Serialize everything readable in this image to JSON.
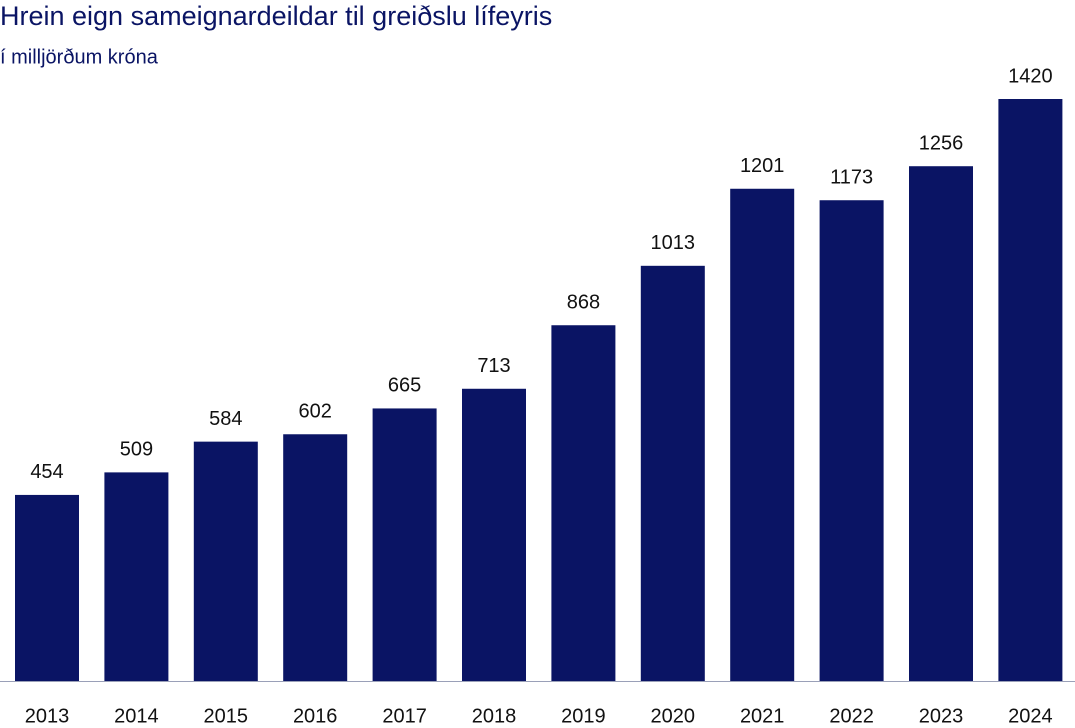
{
  "chart_data": {
    "type": "bar",
    "title": "Hrein eign sameignardeildar til greiðslu lífeyris",
    "subtitle": "í milljörðum króna",
    "categories": [
      "2013",
      "2014",
      "2015",
      "2016",
      "2017",
      "2018",
      "2019",
      "2020",
      "2021",
      "2022",
      "2023",
      "2024"
    ],
    "values": [
      454,
      509,
      584,
      602,
      665,
      713,
      868,
      1013,
      1201,
      1173,
      1256,
      1420
    ],
    "color": "#0a1464"
  }
}
